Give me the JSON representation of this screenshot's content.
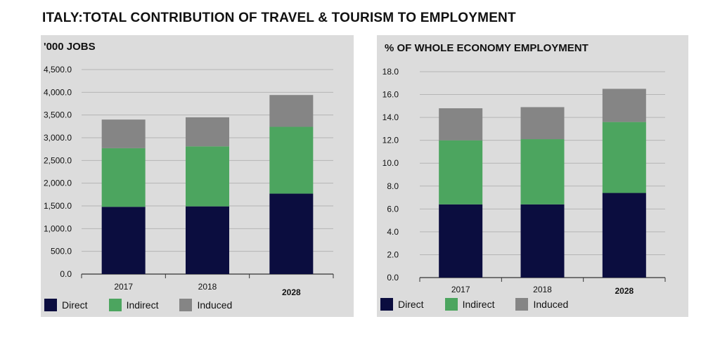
{
  "title": "ITALY:TOTAL CONTRIBUTION OF TRAVEL & TOURISM TO EMPLOYMENT",
  "colors": {
    "direct": "#0b0d3f",
    "indirect": "#4ca55f",
    "induced": "#858585",
    "grid": "#b5b5b5",
    "axis": "#333333"
  },
  "chart_data": [
    {
      "type": "bar",
      "stacked": true,
      "title": "'000 JOBS",
      "categories": [
        "2017",
        "2018",
        "2028"
      ],
      "category_bold": [
        false,
        false,
        true
      ],
      "series": [
        {
          "name": "Direct",
          "values": [
            1480,
            1490,
            1770
          ]
        },
        {
          "name": "Indirect",
          "values": [
            1290,
            1320,
            1470
          ]
        },
        {
          "name": "Induced",
          "values": [
            630,
            640,
            700
          ]
        }
      ],
      "ylim": [
        0,
        4500
      ],
      "yticks": [
        "0.0",
        "500.0",
        "1,000.0",
        "1,500.0",
        "2,000.0",
        "2,500.0",
        "3,000.0",
        "3,500.0",
        "4,000.0",
        "4,500.0"
      ],
      "ytick_values": [
        0,
        500,
        1000,
        1500,
        2000,
        2500,
        3000,
        3500,
        4000,
        4500
      ],
      "grid": true,
      "legend": "bottom-left"
    },
    {
      "type": "bar",
      "stacked": true,
      "title": "% OF WHOLE ECONOMY EMPLOYMENT",
      "categories": [
        "2017",
        "2018",
        "2028"
      ],
      "category_bold": [
        false,
        false,
        true
      ],
      "series": [
        {
          "name": "Direct",
          "values": [
            6.4,
            6.4,
            7.4
          ]
        },
        {
          "name": "Indirect",
          "values": [
            5.6,
            5.7,
            6.2
          ]
        },
        {
          "name": "Induced",
          "values": [
            2.8,
            2.8,
            2.9
          ]
        }
      ],
      "ylim": [
        0,
        18
      ],
      "yticks": [
        "0.0",
        "2.0",
        "4.0",
        "6.0",
        "8.0",
        "10.0",
        "12.0",
        "14.0",
        "16.0",
        "18.0"
      ],
      "ytick_values": [
        0,
        2,
        4,
        6,
        8,
        10,
        12,
        14,
        16,
        18
      ],
      "grid": true,
      "legend": "bottom-left"
    }
  ]
}
